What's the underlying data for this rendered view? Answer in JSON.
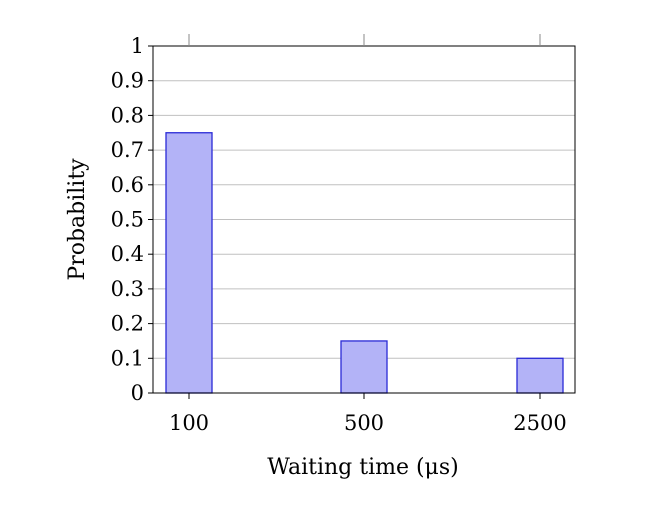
{
  "chart_data": {
    "type": "bar",
    "categories": [
      "100",
      "500",
      "2500"
    ],
    "values": [
      0.75,
      0.15,
      0.1
    ],
    "title": "",
    "xlabel": "Waiting time (μs)",
    "ylabel": "Probability",
    "ylim": [
      0,
      1
    ],
    "yticks": [
      "0",
      "0.1",
      "0.2",
      "0.3",
      "0.4",
      "0.5",
      "0.6",
      "0.7",
      "0.8",
      "0.9",
      "1"
    ],
    "grid": "horizontal",
    "colors": {
      "bar_fill": "#b3b3f7",
      "bar_stroke": "#2a2ad6",
      "grid": "#c0c0c0",
      "axis": "#000000"
    }
  }
}
